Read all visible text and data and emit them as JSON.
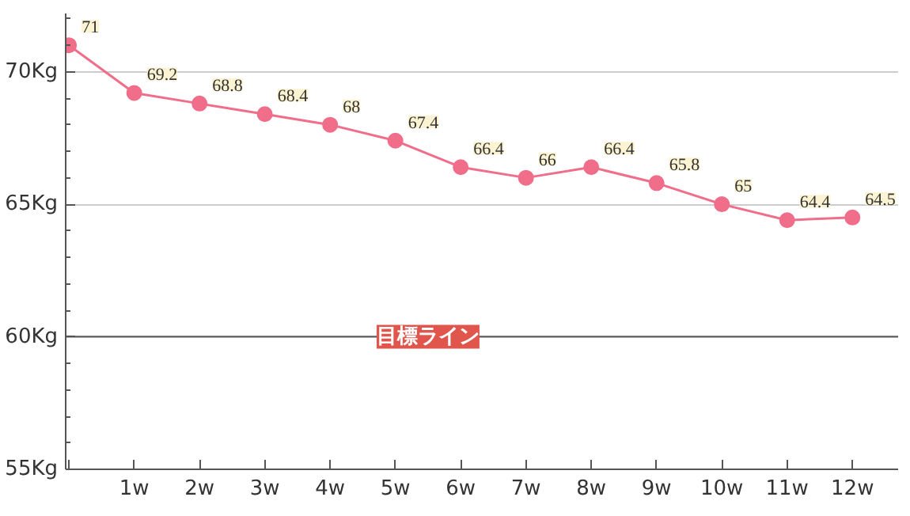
{
  "chart_data": {
    "type": "line",
    "categories": [
      null,
      "1w",
      "2w",
      "3w",
      "4w",
      "5w",
      "6w",
      "7w",
      "8w",
      "9w",
      "10w",
      "11w",
      "12w"
    ],
    "series": [
      {
        "color": "#f06e8a",
        "values": [
          71,
          69.2,
          68.8,
          68.4,
          68,
          67.4,
          66.4,
          66,
          66.4,
          65.8,
          65,
          64.4,
          64.5
        ]
      }
    ],
    "ylim": [
      55,
      72.2
    ],
    "yticks": [
      {
        "value": 55,
        "label": "55Kg"
      },
      {
        "value": 60,
        "label": "60Kg"
      },
      {
        "value": 65,
        "label": "65Kg"
      },
      {
        "value": 70,
        "label": "70Kg"
      }
    ],
    "grid": "y",
    "marker": "circle",
    "line_style": "solid",
    "data_labels": true,
    "ref_lines": [
      {
        "axis": "y",
        "value": 60,
        "label": "目標ライン",
        "color": "#555555"
      }
    ]
  }
}
